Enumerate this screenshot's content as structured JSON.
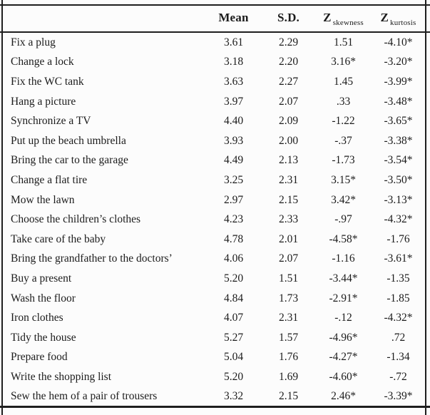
{
  "colors": {
    "rule": "#1e1e1e",
    "text": "#1c1c1c",
    "background": "#fcfcfc"
  },
  "table": {
    "header": {
      "task": "",
      "mean": "Mean",
      "sd": "S.D.",
      "z_skewness": {
        "base": "Z",
        "sub": "skewness"
      },
      "z_kurtosis": {
        "base": "Z",
        "sub": "kurtosis"
      }
    },
    "rows": [
      {
        "task": "Fix a plug",
        "mean": "3.61",
        "sd": "2.29",
        "z_skewness": "1.51",
        "z_kurtosis": "-4.10*"
      },
      {
        "task": "Change a lock",
        "mean": "3.18",
        "sd": "2.20",
        "z_skewness": "3.16*",
        "z_kurtosis": "-3.20*"
      },
      {
        "task": "Fix the WC tank",
        "mean": "3.63",
        "sd": "2.27",
        "z_skewness": "1.45",
        "z_kurtosis": "-3.99*"
      },
      {
        "task": "Hang a picture",
        "mean": "3.97",
        "sd": "2.07",
        "z_skewness": ".33",
        "z_kurtosis": "-3.48*"
      },
      {
        "task": "Synchronize a TV",
        "mean": "4.40",
        "sd": "2.09",
        "z_skewness": "-1.22",
        "z_kurtosis": "-3.65*"
      },
      {
        "task": "Put up the beach umbrella",
        "mean": "3.93",
        "sd": "2.00",
        "z_skewness": "-.37",
        "z_kurtosis": "-3.38*"
      },
      {
        "task": "Bring the car to the garage",
        "mean": "4.49",
        "sd": "2.13",
        "z_skewness": "-1.73",
        "z_kurtosis": "-3.54*"
      },
      {
        "task": "Change a flat tire",
        "mean": "3.25",
        "sd": "2.31",
        "z_skewness": "3.15*",
        "z_kurtosis": "-3.50*"
      },
      {
        "task": "Mow the lawn",
        "mean": "2.97",
        "sd": "2.15",
        "z_skewness": "3.42*",
        "z_kurtosis": "-3.13*"
      },
      {
        "task": "Choose the children’s clothes",
        "mean": "4.23",
        "sd": "2.33",
        "z_skewness": "-.97",
        "z_kurtosis": "-4.32*"
      },
      {
        "task": "Take care of the baby",
        "mean": "4.78",
        "sd": "2.01",
        "z_skewness": "-4.58*",
        "z_kurtosis": "-1.76"
      },
      {
        "task": "Bring the grandfather to the doctors’",
        "mean": "4.06",
        "sd": "2.07",
        "z_skewness": "-1.16",
        "z_kurtosis": "-3.61*"
      },
      {
        "task": "Buy a present",
        "mean": "5.20",
        "sd": "1.51",
        "z_skewness": "-3.44*",
        "z_kurtosis": "-1.35"
      },
      {
        "task": "Wash the floor",
        "mean": "4.84",
        "sd": "1.73",
        "z_skewness": "-2.91*",
        "z_kurtosis": "-1.85"
      },
      {
        "task": "Iron clothes",
        "mean": "4.07",
        "sd": "2.31",
        "z_skewness": "-.12",
        "z_kurtosis": "-4.32*"
      },
      {
        "task": "Tidy the house",
        "mean": "5.27",
        "sd": "1.57",
        "z_skewness": "-4.96*",
        "z_kurtosis": ".72"
      },
      {
        "task": "Prepare food",
        "mean": "5.04",
        "sd": "1.76",
        "z_skewness": "-4.27*",
        "z_kurtosis": "-1.34"
      },
      {
        "task": "Write the shopping list",
        "mean": "5.20",
        "sd": "1.69",
        "z_skewness": "-4.60*",
        "z_kurtosis": "-.72"
      },
      {
        "task": "Sew the hem of a pair of trousers",
        "mean": "3.32",
        "sd": "2.15",
        "z_skewness": "2.46*",
        "z_kurtosis": "-3.39*"
      }
    ]
  }
}
